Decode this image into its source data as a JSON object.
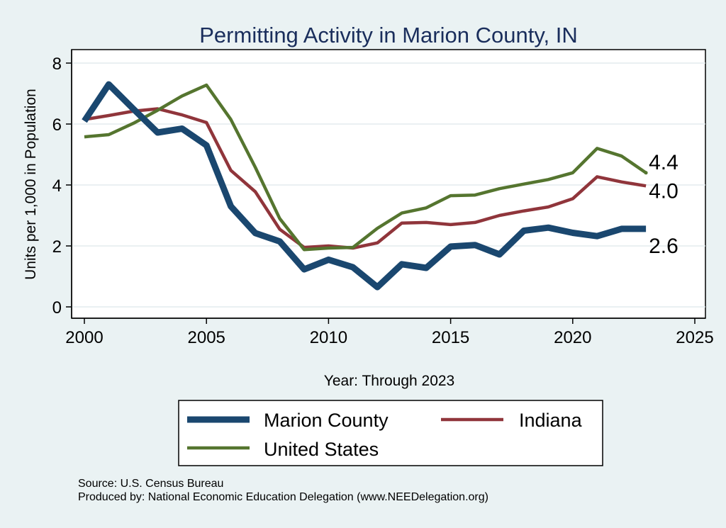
{
  "chart_data": {
    "type": "line",
    "title": "Permitting Activity in Marion County, IN",
    "xlabel": "Year: Through 2023",
    "ylabel": "Units per 1,000 in Population",
    "xlim": [
      2000,
      2025
    ],
    "ylim": [
      0,
      8
    ],
    "xticks": [
      "2000",
      "2005",
      "2010",
      "2015",
      "2020",
      "2025"
    ],
    "yticks": [
      "0",
      "2",
      "4",
      "6",
      "8"
    ],
    "grid": true,
    "legend_position": "bottom",
    "x": [
      2000,
      2001,
      2002,
      2003,
      2004,
      2005,
      2006,
      2007,
      2008,
      2009,
      2010,
      2011,
      2012,
      2013,
      2014,
      2015,
      2016,
      2017,
      2018,
      2019,
      2020,
      2021,
      2022,
      2023
    ],
    "series": [
      {
        "name": "Marion County",
        "color": "#1a476f",
        "width": "thick",
        "values": [
          6.1,
          7.3,
          6.5,
          5.72,
          5.85,
          5.3,
          3.3,
          2.42,
          2.15,
          1.23,
          1.55,
          1.3,
          0.65,
          1.4,
          1.28,
          1.98,
          2.03,
          1.72,
          2.5,
          2.6,
          2.43,
          2.32,
          2.56,
          2.56
        ],
        "end_label": "2.6"
      },
      {
        "name": "Indiana",
        "color": "#90353b",
        "width": "medium",
        "values": [
          6.15,
          6.28,
          6.42,
          6.5,
          6.3,
          6.05,
          4.48,
          3.78,
          2.55,
          1.95,
          2.0,
          1.93,
          2.1,
          2.75,
          2.77,
          2.7,
          2.77,
          3.0,
          3.15,
          3.28,
          3.55,
          4.27,
          4.1,
          3.97
        ],
        "end_label": "4.0"
      },
      {
        "name": "United States",
        "color": "#55752f",
        "width": "medium",
        "values": [
          5.58,
          5.65,
          6.02,
          6.45,
          6.92,
          7.28,
          6.15,
          4.58,
          2.9,
          1.88,
          1.93,
          1.95,
          2.58,
          3.08,
          3.25,
          3.65,
          3.67,
          3.88,
          4.03,
          4.18,
          4.4,
          5.2,
          4.95,
          4.4
        ],
        "end_label": "4.4"
      }
    ]
  },
  "legend": {
    "items": [
      {
        "label": "Marion County",
        "color": "#1a476f"
      },
      {
        "label": "Indiana",
        "color": "#90353b"
      },
      {
        "label": "United States",
        "color": "#55752f"
      }
    ]
  },
  "notes": {
    "source": "Source: U.S. Census Bureau",
    "produced": "Produced by: National Economic Education Delegation (www.NEEDelegation.org)"
  }
}
